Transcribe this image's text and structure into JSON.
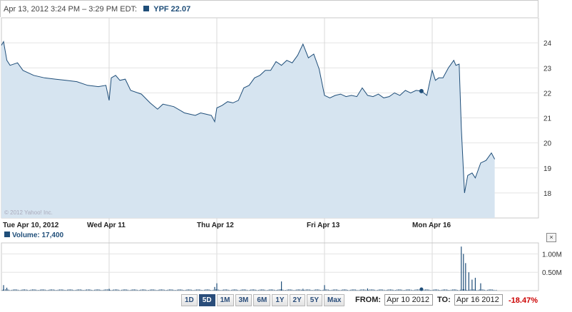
{
  "header": {
    "range_text": "Apr 13, 2012 3:24 PM – 3:29 PM EDT:",
    "symbol_text": "YPF 22.07"
  },
  "copyright": "© 2012 Yahoo! Inc.",
  "volume_label": "Volume: 17,400",
  "close_label": "×",
  "range_buttons": [
    "1D",
    "5D",
    "1M",
    "3M",
    "6M",
    "1Y",
    "2Y",
    "5Y",
    "Max"
  ],
  "active_range": "5D",
  "from_label": "FROM:",
  "from_value": "Apr 10 2012",
  "to_label": "TO:",
  "to_value": "Apr 16 2012",
  "change": "-18.47%",
  "colors": {
    "line": "#1f4e79",
    "fill": "#d6e4f0",
    "change": "#cc0000"
  },
  "chart_data": [
    {
      "type": "area",
      "title": "YPF",
      "xlabel": "",
      "ylabel": "",
      "x_ticks": [
        "Tue Apr 10, 2012",
        "Wed Apr 11",
        "Thu Apr 12",
        "Fri Apr 13",
        "Mon Apr 16"
      ],
      "y_ticks": [
        18,
        19,
        20,
        21,
        22,
        23,
        24
      ],
      "ylim": [
        17.0,
        25.0
      ],
      "x_unit": "trading day index (0 = Apr 10 open)",
      "xlim": [
        0,
        4.6
      ],
      "series": [
        {
          "name": "YPF",
          "points": [
            [
              0,
              23.9
            ],
            [
              0.02,
              24.05
            ],
            [
              0.05,
              23.3
            ],
            [
              0.08,
              23.1
            ],
            [
              0.15,
              23.2
            ],
            [
              0.2,
              22.9
            ],
            [
              0.3,
              22.7
            ],
            [
              0.4,
              22.6
            ],
            [
              0.5,
              22.55
            ],
            [
              0.6,
              22.5
            ],
            [
              0.7,
              22.45
            ],
            [
              0.8,
              22.3
            ],
            [
              0.9,
              22.25
            ],
            [
              0.97,
              22.3
            ],
            [
              1.0,
              21.7
            ],
            [
              1.02,
              22.6
            ],
            [
              1.06,
              22.7
            ],
            [
              1.1,
              22.5
            ],
            [
              1.15,
              22.55
            ],
            [
              1.2,
              22.1
            ],
            [
              1.3,
              21.95
            ],
            [
              1.38,
              21.6
            ],
            [
              1.45,
              21.35
            ],
            [
              1.5,
              21.55
            ],
            [
              1.6,
              21.45
            ],
            [
              1.7,
              21.2
            ],
            [
              1.8,
              21.1
            ],
            [
              1.85,
              21.2
            ],
            [
              1.9,
              21.15
            ],
            [
              1.95,
              21.1
            ],
            [
              1.98,
              20.85
            ],
            [
              2.0,
              21.4
            ],
            [
              2.05,
              21.5
            ],
            [
              2.1,
              21.65
            ],
            [
              2.15,
              21.6
            ],
            [
              2.2,
              21.7
            ],
            [
              2.25,
              22.2
            ],
            [
              2.3,
              22.3
            ],
            [
              2.35,
              22.6
            ],
            [
              2.4,
              22.7
            ],
            [
              2.45,
              22.9
            ],
            [
              2.5,
              22.9
            ],
            [
              2.55,
              23.25
            ],
            [
              2.6,
              23.1
            ],
            [
              2.65,
              23.3
            ],
            [
              2.7,
              23.2
            ],
            [
              2.75,
              23.5
            ],
            [
              2.8,
              23.95
            ],
            [
              2.85,
              23.4
            ],
            [
              2.9,
              23.55
            ],
            [
              2.95,
              22.95
            ],
            [
              3.0,
              21.9
            ],
            [
              3.05,
              21.8
            ],
            [
              3.1,
              21.9
            ],
            [
              3.15,
              21.95
            ],
            [
              3.2,
              21.85
            ],
            [
              3.25,
              21.9
            ],
            [
              3.3,
              21.85
            ],
            [
              3.35,
              22.2
            ],
            [
              3.4,
              21.9
            ],
            [
              3.45,
              21.85
            ],
            [
              3.5,
              21.95
            ],
            [
              3.55,
              21.8
            ],
            [
              3.6,
              21.85
            ],
            [
              3.65,
              22.0
            ],
            [
              3.7,
              21.9
            ],
            [
              3.75,
              22.1
            ],
            [
              3.8,
              22.0
            ],
            [
              3.85,
              22.1
            ],
            [
              3.9,
              22.07
            ],
            [
              3.95,
              21.9
            ],
            [
              4.0,
              22.9
            ],
            [
              4.03,
              22.5
            ],
            [
              4.06,
              22.6
            ],
            [
              4.1,
              22.6
            ],
            [
              4.15,
              23.0
            ],
            [
              4.2,
              23.3
            ],
            [
              4.22,
              23.1
            ],
            [
              4.25,
              23.15
            ],
            [
              4.27,
              20.6
            ],
            [
              4.3,
              18.0
            ],
            [
              4.33,
              18.7
            ],
            [
              4.37,
              18.8
            ],
            [
              4.4,
              18.6
            ],
            [
              4.45,
              19.2
            ],
            [
              4.5,
              19.3
            ],
            [
              4.55,
              19.6
            ],
            [
              4.58,
              19.35
            ]
          ]
        }
      ],
      "marker": {
        "x": 3.9,
        "y": 22.07
      }
    },
    {
      "type": "bar",
      "title": "Volume",
      "y_ticks": [
        "0.50M",
        "1.00M"
      ],
      "ylim": [
        0,
        1.3
      ],
      "x_unit": "trading day index",
      "spikes": [
        [
          0.02,
          0.15
        ],
        [
          0.05,
          0.08
        ],
        [
          1.0,
          0.05
        ],
        [
          1.98,
          0.1
        ],
        [
          2.0,
          0.2
        ],
        [
          2.6,
          0.25
        ],
        [
          2.8,
          0.05
        ],
        [
          3.0,
          0.15
        ],
        [
          3.4,
          0.06
        ],
        [
          3.9,
          0.05
        ],
        [
          4.27,
          1.2
        ],
        [
          4.29,
          1.0
        ],
        [
          4.31,
          0.75
        ],
        [
          4.34,
          0.5
        ],
        [
          4.37,
          0.3
        ],
        [
          4.4,
          0.35
        ],
        [
          4.45,
          0.2
        ]
      ]
    }
  ]
}
